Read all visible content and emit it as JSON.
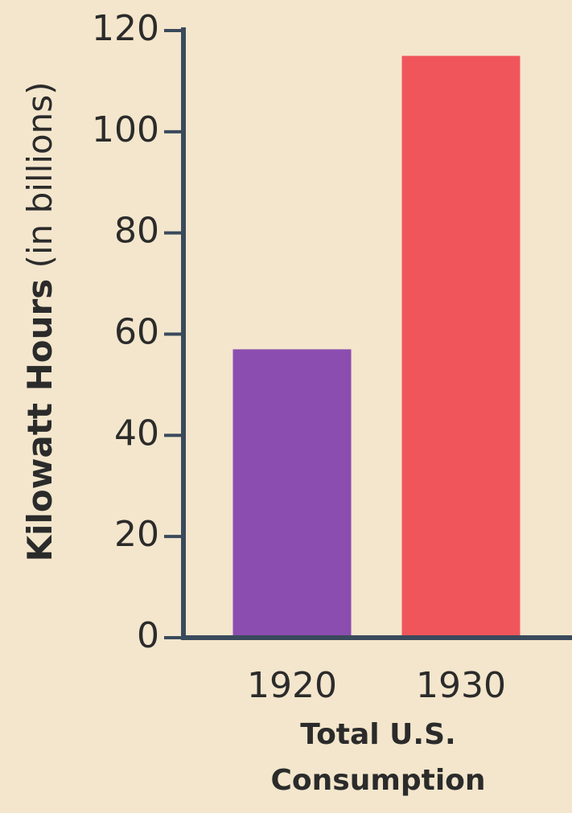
{
  "chart_data": {
    "type": "bar",
    "ylabel": "Kilowatt Hours",
    "ylabel_note": "(in billions)",
    "xlabel": [
      "Total U.S.",
      "Consumption"
    ],
    "categories": [
      "1920",
      "1930"
    ],
    "values": [
      57,
      115
    ],
    "colors": [
      "#8b4db0",
      "#f0555b"
    ],
    "ylim": [
      0,
      120
    ],
    "yticks": [
      0,
      20,
      40,
      60,
      80,
      100,
      120
    ],
    "grid": false
  }
}
